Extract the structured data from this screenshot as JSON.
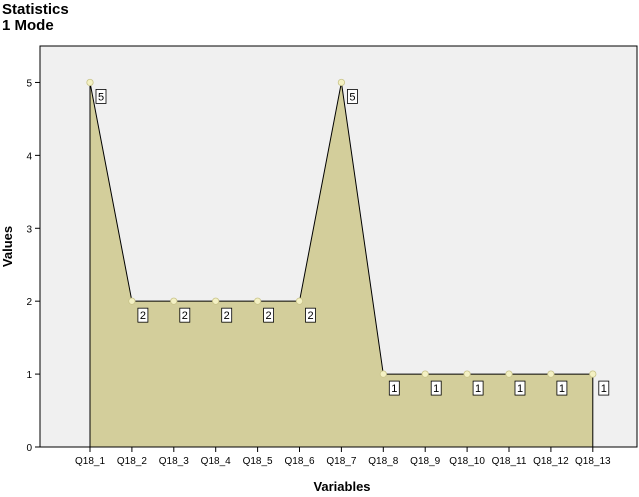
{
  "header": {
    "title_line1": "Statistics",
    "title_line2": "1 Mode"
  },
  "colors": {
    "plot_background": "#f0f0f0",
    "area_fill": "#d3ce9b",
    "line": "#000000",
    "marker": "#f4f1c4"
  },
  "chart_data": {
    "type": "area",
    "title": "Statistics",
    "subtitle": "1 Mode",
    "xlabel": "Variables",
    "ylabel": "Values",
    "categories": [
      "Q18_1",
      "Q18_2",
      "Q18_3",
      "Q18_4",
      "Q18_5",
      "Q18_6",
      "Q18_7",
      "Q18_8",
      "Q18_9",
      "Q18_10",
      "Q18_11",
      "Q18_12",
      "Q18_13"
    ],
    "values": [
      5,
      2,
      2,
      2,
      2,
      2,
      5,
      1,
      1,
      1,
      1,
      1,
      1
    ],
    "data_labels": [
      "5",
      "2",
      "2",
      "2",
      "2",
      "2",
      "5",
      "1",
      "1",
      "1",
      "1",
      "1",
      "1"
    ],
    "ylim": [
      0,
      5.5
    ],
    "yticks": [
      0,
      1,
      2,
      3,
      4,
      5
    ],
    "grid": false,
    "legend": "none"
  }
}
